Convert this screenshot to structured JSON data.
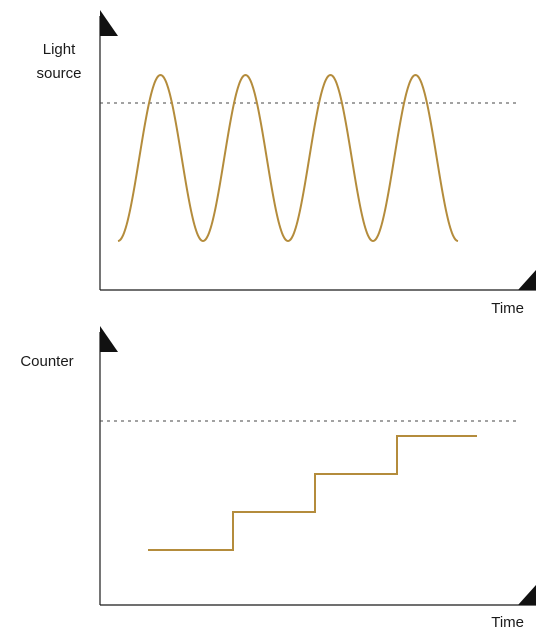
{
  "colors": {
    "signal": "#b48c3c",
    "axis": "#1a1a1a",
    "threshold": "#444444"
  },
  "panels": [
    {
      "ylabel": [
        "Light",
        "source"
      ],
      "xlabel": "Time",
      "curve": {
        "type": "sinusoid",
        "cycles": 4,
        "starts_at": "trough",
        "ends_at": "trough"
      },
      "threshold": {
        "style": "dashed"
      }
    },
    {
      "ylabel": [
        "Counter"
      ],
      "xlabel": "Time",
      "curve": {
        "type": "staircase",
        "levels": [
          0,
          1,
          2,
          3
        ],
        "steps": 3
      },
      "threshold": {
        "style": "dashed"
      }
    }
  ]
}
